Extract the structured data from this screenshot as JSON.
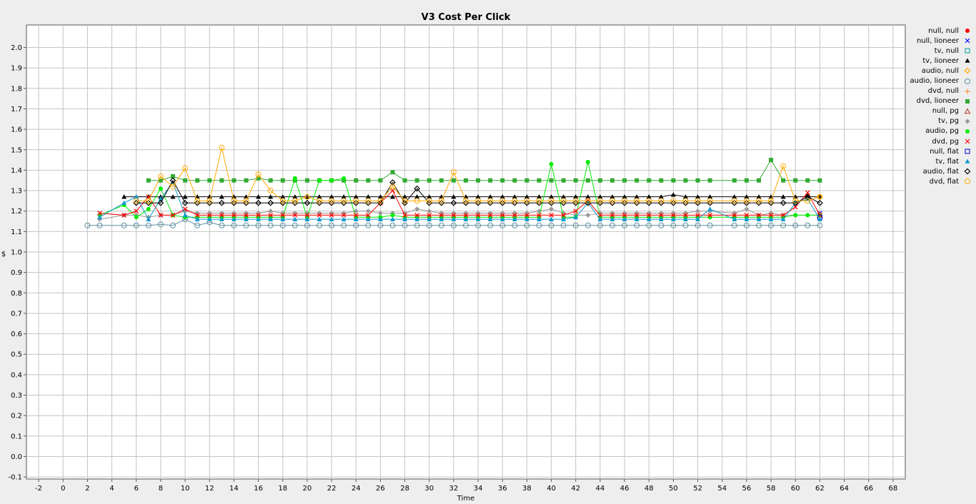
{
  "chart_data": {
    "type": "line",
    "title": "V3 Cost Per Click",
    "xlabel": "Time",
    "ylabel": "$",
    "xlim": [
      -3,
      69
    ],
    "ylim": [
      -0.11,
      2.11
    ],
    "xticks": [
      -2,
      0,
      2,
      4,
      6,
      8,
      10,
      12,
      14,
      16,
      18,
      20,
      22,
      24,
      26,
      28,
      30,
      32,
      34,
      36,
      38,
      40,
      42,
      44,
      46,
      48,
      50,
      52,
      54,
      56,
      58,
      60,
      62,
      64,
      66,
      68
    ],
    "yticks": [
      -0.1,
      0.0,
      0.1,
      0.2,
      0.3,
      0.4,
      0.5,
      0.6,
      0.7,
      0.8,
      0.9,
      1.0,
      1.1,
      1.2,
      1.3,
      1.4,
      1.5,
      1.6,
      1.7,
      1.8,
      1.9,
      2.0
    ],
    "grid": true,
    "legend_position": "right",
    "series": [
      {
        "name": "null, null",
        "color": "#ff0000",
        "marker": "circle-filled",
        "x": [
          62
        ],
        "values": [
          1.18
        ]
      },
      {
        "name": "null, lioneer",
        "color": "#0000ff",
        "marker": "x",
        "x": [
          62
        ],
        "values": [
          1.19
        ]
      },
      {
        "name": "tv, null",
        "color": "#009999",
        "marker": "square-open",
        "x": [
          62
        ],
        "values": [
          1.17
        ]
      },
      {
        "name": "tv, lioneer",
        "color": "#000000",
        "marker": "triangle-filled",
        "x": [
          5,
          6,
          7,
          8,
          9,
          10,
          11,
          12,
          13,
          14,
          15,
          16,
          17,
          18,
          19,
          20,
          21,
          22,
          23,
          24,
          25,
          26,
          27,
          28,
          29,
          30,
          31,
          32,
          33,
          34,
          35,
          36,
          37,
          38,
          39,
          40,
          41,
          42,
          43,
          44,
          45,
          46,
          47,
          48,
          49,
          50,
          51,
          52,
          53,
          55,
          56,
          57,
          58,
          59,
          60,
          61,
          62
        ],
        "values": [
          1.27,
          1.27,
          1.27,
          1.27,
          1.27,
          1.27,
          1.27,
          1.27,
          1.27,
          1.27,
          1.27,
          1.27,
          1.27,
          1.27,
          1.27,
          1.27,
          1.27,
          1.27,
          1.27,
          1.27,
          1.27,
          1.27,
          1.27,
          1.27,
          1.27,
          1.27,
          1.27,
          1.27,
          1.27,
          1.27,
          1.27,
          1.27,
          1.27,
          1.27,
          1.27,
          1.27,
          1.27,
          1.27,
          1.27,
          1.27,
          1.27,
          1.27,
          1.27,
          1.27,
          1.27,
          1.28,
          1.27,
          1.27,
          1.27,
          1.27,
          1.27,
          1.27,
          1.27,
          1.27,
          1.27,
          1.27,
          1.27
        ]
      },
      {
        "name": "audio, null",
        "color": "#ffa500",
        "marker": "diamond-open",
        "x": [
          62
        ],
        "values": [
          1.27
        ]
      },
      {
        "name": "audio, lioneer",
        "color": "#5f8f9f",
        "marker": "circle-open",
        "x": [
          2,
          3,
          5,
          6,
          7,
          8,
          9,
          10,
          11,
          12,
          13,
          14,
          15,
          16,
          17,
          18,
          19,
          20,
          21,
          22,
          23,
          24,
          25,
          26,
          27,
          28,
          29,
          30,
          31,
          32,
          33,
          34,
          35,
          36,
          37,
          38,
          39,
          40,
          41,
          42,
          43,
          44,
          45,
          46,
          47,
          48,
          49,
          50,
          51,
          52,
          53,
          55,
          56,
          57,
          58,
          59,
          60,
          61,
          62
        ],
        "values": [
          1.13,
          1.13,
          1.13,
          1.13,
          1.13,
          1.135,
          1.13,
          1.16,
          1.13,
          1.145,
          1.13,
          1.13,
          1.13,
          1.13,
          1.13,
          1.13,
          1.13,
          1.13,
          1.13,
          1.13,
          1.13,
          1.13,
          1.13,
          1.13,
          1.13,
          1.13,
          1.13,
          1.13,
          1.13,
          1.13,
          1.13,
          1.13,
          1.13,
          1.13,
          1.13,
          1.13,
          1.13,
          1.13,
          1.13,
          1.13,
          1.13,
          1.13,
          1.13,
          1.13,
          1.13,
          1.13,
          1.13,
          1.13,
          1.13,
          1.13,
          1.13,
          1.13,
          1.13,
          1.13,
          1.13,
          1.13,
          1.13,
          1.13,
          1.13
        ]
      },
      {
        "name": "dvd, null",
        "color": "#ff8c40",
        "marker": "plus",
        "x": [
          62
        ],
        "values": [
          1.19
        ]
      },
      {
        "name": "dvd, lioneer",
        "color": "#33aa33",
        "marker": "square-filled",
        "x": [
          7,
          8,
          9,
          10,
          11,
          12,
          13,
          14,
          15,
          16,
          17,
          18,
          19,
          20,
          21,
          22,
          23,
          24,
          25,
          26,
          27,
          28,
          29,
          30,
          31,
          32,
          33,
          34,
          35,
          36,
          37,
          38,
          39,
          40,
          41,
          42,
          43,
          44,
          45,
          46,
          47,
          48,
          49,
          50,
          51,
          52,
          53,
          55,
          56,
          57,
          58,
          59,
          60,
          61,
          62
        ],
        "values": [
          1.35,
          1.35,
          1.37,
          1.35,
          1.35,
          1.35,
          1.35,
          1.35,
          1.35,
          1.36,
          1.35,
          1.35,
          1.35,
          1.35,
          1.35,
          1.35,
          1.35,
          1.35,
          1.35,
          1.35,
          1.39,
          1.35,
          1.35,
          1.35,
          1.35,
          1.35,
          1.35,
          1.35,
          1.35,
          1.35,
          1.35,
          1.35,
          1.35,
          1.35,
          1.35,
          1.35,
          1.35,
          1.35,
          1.35,
          1.35,
          1.35,
          1.35,
          1.35,
          1.35,
          1.35,
          1.35,
          1.35,
          1.35,
          1.35,
          1.35,
          1.45,
          1.35,
          1.35,
          1.35,
          1.35
        ]
      },
      {
        "name": "null, pg",
        "color": "#aa3322",
        "marker": "triangle-open",
        "x": [
          62
        ],
        "values": [
          1.18
        ]
      },
      {
        "name": "tv, pg",
        "color": "#999999",
        "marker": "diamond-filled",
        "x": [
          3,
          5,
          6,
          7,
          8,
          9,
          10,
          11,
          12,
          13,
          14,
          15,
          16,
          17,
          18,
          19,
          20,
          21,
          22,
          23,
          24,
          25,
          26,
          27,
          28,
          29,
          30,
          31,
          32,
          33,
          34,
          35,
          36,
          37,
          38,
          39,
          40,
          41,
          42,
          43,
          44,
          45,
          46,
          47,
          48,
          49,
          50,
          51,
          52,
          53,
          55,
          56,
          57,
          58,
          59,
          60,
          61,
          62
        ],
        "values": [
          1.16,
          1.18,
          1.18,
          1.17,
          1.18,
          1.18,
          1.2,
          1.19,
          1.19,
          1.19,
          1.19,
          1.19,
          1.19,
          1.2,
          1.19,
          1.19,
          1.19,
          1.19,
          1.19,
          1.19,
          1.2,
          1.2,
          1.19,
          1.19,
          1.19,
          1.21,
          1.2,
          1.19,
          1.19,
          1.19,
          1.19,
          1.19,
          1.19,
          1.19,
          1.19,
          1.2,
          1.21,
          1.19,
          1.18,
          1.18,
          1.19,
          1.19,
          1.19,
          1.19,
          1.19,
          1.19,
          1.19,
          1.19,
          1.2,
          1.2,
          1.19,
          1.21,
          1.18,
          1.19,
          1.18,
          1.18,
          1.18,
          1.18
        ]
      },
      {
        "name": "audio, pg",
        "color": "#00ee00",
        "marker": "circle-filled",
        "x": [
          3,
          5,
          6,
          7,
          8,
          9,
          10,
          11,
          12,
          13,
          14,
          15,
          16,
          17,
          18,
          19,
          20,
          21,
          22,
          23,
          24,
          25,
          26,
          27,
          28,
          29,
          30,
          31,
          32,
          33,
          34,
          35,
          36,
          37,
          38,
          39,
          40,
          41,
          42,
          43,
          44,
          45,
          46,
          47,
          48,
          49,
          50,
          51,
          52,
          53,
          55,
          56,
          57,
          58,
          59,
          60,
          61,
          62
        ],
        "values": [
          1.18,
          1.23,
          1.17,
          1.21,
          1.31,
          1.18,
          1.17,
          1.17,
          1.17,
          1.17,
          1.17,
          1.17,
          1.17,
          1.17,
          1.17,
          1.36,
          1.17,
          1.35,
          1.35,
          1.36,
          1.17,
          1.17,
          1.17,
          1.18,
          1.17,
          1.17,
          1.17,
          1.17,
          1.17,
          1.17,
          1.17,
          1.17,
          1.17,
          1.17,
          1.17,
          1.17,
          1.43,
          1.17,
          1.17,
          1.44,
          1.17,
          1.17,
          1.17,
          1.17,
          1.17,
          1.17,
          1.17,
          1.17,
          1.17,
          1.17,
          1.17,
          1.17,
          1.17,
          1.17,
          1.17,
          1.18,
          1.18,
          1.18
        ]
      },
      {
        "name": "dvd, pg",
        "color": "#ff0000",
        "marker": "x",
        "x": [
          3,
          5,
          6,
          7,
          8,
          9,
          10,
          11,
          12,
          13,
          14,
          15,
          16,
          17,
          18,
          19,
          20,
          21,
          22,
          23,
          24,
          25,
          26,
          27,
          28,
          29,
          30,
          31,
          32,
          33,
          34,
          35,
          36,
          37,
          38,
          39,
          40,
          41,
          42,
          43,
          44,
          45,
          46,
          47,
          48,
          49,
          50,
          51,
          52,
          53,
          55,
          56,
          57,
          58,
          59,
          60,
          61,
          62
        ],
        "values": [
          1.19,
          1.18,
          1.2,
          1.27,
          1.18,
          1.18,
          1.21,
          1.18,
          1.18,
          1.18,
          1.18,
          1.18,
          1.18,
          1.18,
          1.18,
          1.18,
          1.18,
          1.18,
          1.18,
          1.18,
          1.18,
          1.18,
          1.24,
          1.3,
          1.18,
          1.18,
          1.18,
          1.18,
          1.18,
          1.18,
          1.18,
          1.18,
          1.18,
          1.18,
          1.18,
          1.18,
          1.18,
          1.18,
          1.2,
          1.25,
          1.18,
          1.18,
          1.18,
          1.18,
          1.18,
          1.18,
          1.18,
          1.18,
          1.18,
          1.18,
          1.18,
          1.18,
          1.18,
          1.18,
          1.18,
          1.22,
          1.29,
          1.18
        ]
      },
      {
        "name": "null, flat",
        "color": "#0000cc",
        "marker": "square-open",
        "x": [
          62
        ],
        "values": [
          1.17
        ]
      },
      {
        "name": "tv, flat",
        "color": "#1199cc",
        "marker": "triangle-filled",
        "x": [
          3,
          5,
          6,
          7,
          8,
          9,
          10,
          11,
          12,
          13,
          14,
          15,
          16,
          17,
          18,
          19,
          20,
          21,
          22,
          23,
          24,
          25,
          26,
          27,
          28,
          29,
          30,
          31,
          32,
          33,
          34,
          35,
          36,
          37,
          38,
          39,
          40,
          41,
          42,
          43,
          44,
          45,
          46,
          47,
          48,
          49,
          50,
          51,
          52,
          53,
          55,
          56,
          57,
          58,
          59,
          60,
          61,
          62
        ],
        "values": [
          1.17,
          1.24,
          1.27,
          1.16,
          1.26,
          1.34,
          1.18,
          1.16,
          1.16,
          1.16,
          1.16,
          1.16,
          1.16,
          1.16,
          1.16,
          1.16,
          1.16,
          1.16,
          1.16,
          1.16,
          1.16,
          1.16,
          1.16,
          1.16,
          1.16,
          1.16,
          1.16,
          1.16,
          1.16,
          1.16,
          1.16,
          1.16,
          1.16,
          1.16,
          1.16,
          1.16,
          1.16,
          1.16,
          1.17,
          1.24,
          1.16,
          1.16,
          1.16,
          1.16,
          1.16,
          1.16,
          1.16,
          1.16,
          1.16,
          1.21,
          1.16,
          1.16,
          1.16,
          1.16,
          1.16,
          1.24,
          1.26,
          1.16
        ]
      },
      {
        "name": "audio, flat",
        "color": "#000000",
        "marker": "diamond-open",
        "x": [
          6,
          7,
          8,
          9,
          10,
          11,
          12,
          13,
          14,
          15,
          16,
          17,
          18,
          19,
          20,
          21,
          22,
          23,
          24,
          25,
          26,
          27,
          28,
          29,
          30,
          31,
          32,
          33,
          34,
          35,
          36,
          37,
          38,
          39,
          40,
          41,
          42,
          43,
          44,
          45,
          46,
          47,
          48,
          49,
          50,
          51,
          52,
          53,
          55,
          56,
          57,
          58,
          59,
          60,
          61,
          62
        ],
        "values": [
          1.24,
          1.24,
          1.24,
          1.35,
          1.24,
          1.24,
          1.24,
          1.24,
          1.24,
          1.24,
          1.24,
          1.24,
          1.24,
          1.24,
          1.24,
          1.24,
          1.24,
          1.24,
          1.24,
          1.24,
          1.24,
          1.34,
          1.24,
          1.31,
          1.24,
          1.24,
          1.24,
          1.24,
          1.24,
          1.24,
          1.24,
          1.24,
          1.24,
          1.24,
          1.24,
          1.24,
          1.24,
          1.24,
          1.24,
          1.24,
          1.24,
          1.24,
          1.24,
          1.24,
          1.24,
          1.24,
          1.24,
          1.24,
          1.24,
          1.24,
          1.24,
          1.24,
          1.24,
          1.24,
          1.27,
          1.24
        ]
      },
      {
        "name": "dvd, flat",
        "color": "#ffaa00",
        "marker": "circle-open",
        "x": [
          6,
          7,
          8,
          9,
          10,
          11,
          12,
          13,
          14,
          15,
          16,
          17,
          18,
          19,
          20,
          21,
          22,
          23,
          24,
          25,
          26,
          27,
          28,
          29,
          30,
          31,
          32,
          33,
          34,
          35,
          36,
          37,
          38,
          39,
          40,
          41,
          42,
          43,
          44,
          45,
          46,
          47,
          48,
          49,
          50,
          51,
          52,
          53,
          55,
          56,
          57,
          58,
          59,
          60,
          61,
          62
        ],
        "values": [
          1.25,
          1.25,
          1.37,
          1.32,
          1.41,
          1.25,
          1.25,
          1.51,
          1.25,
          1.25,
          1.38,
          1.3,
          1.25,
          1.25,
          1.27,
          1.25,
          1.25,
          1.25,
          1.25,
          1.25,
          1.25,
          1.32,
          1.25,
          1.25,
          1.25,
          1.25,
          1.39,
          1.25,
          1.25,
          1.25,
          1.25,
          1.25,
          1.25,
          1.25,
          1.25,
          1.25,
          1.25,
          1.25,
          1.25,
          1.25,
          1.25,
          1.25,
          1.25,
          1.25,
          1.25,
          1.25,
          1.25,
          1.25,
          1.25,
          1.25,
          1.25,
          1.25,
          1.42,
          1.25,
          1.25,
          1.27
        ]
      }
    ]
  }
}
